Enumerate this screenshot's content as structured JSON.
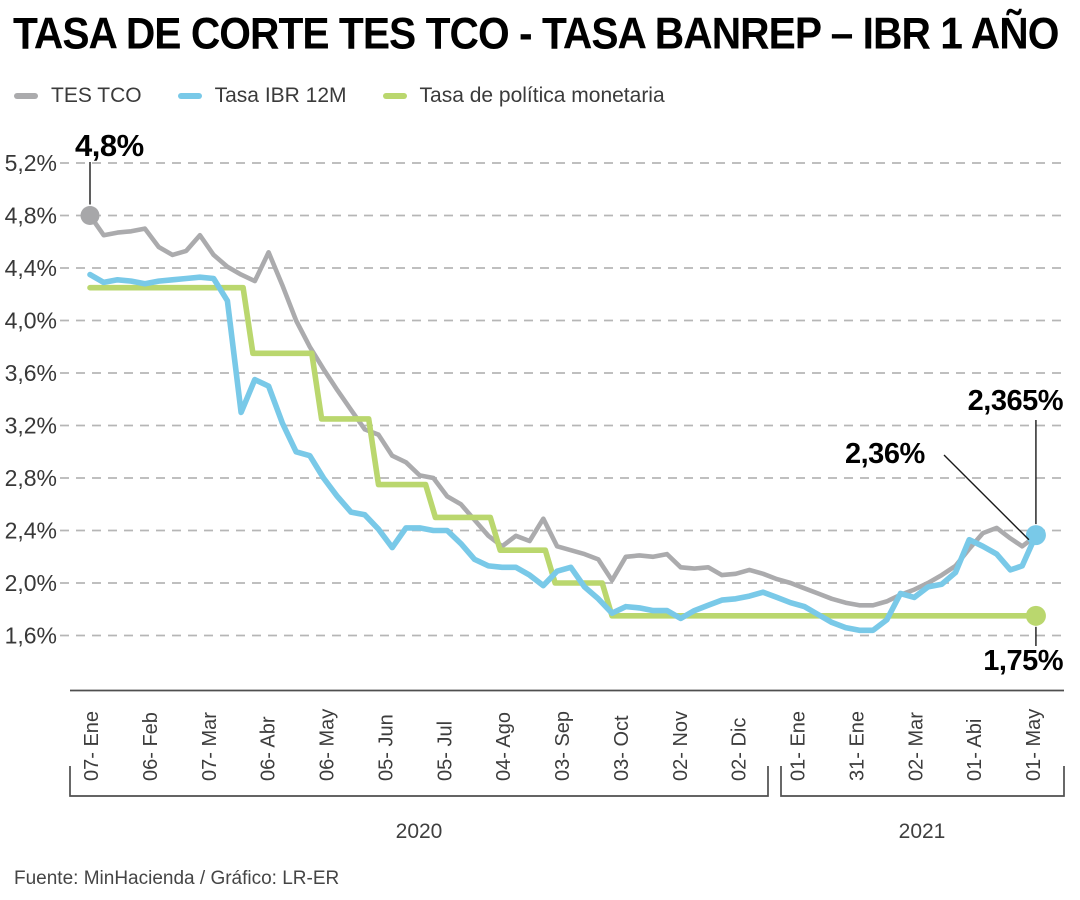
{
  "header": {
    "title": "TASA DE CORTE TES TCO - TASA BANREP – IBR 1 AÑO"
  },
  "legend": [
    {
      "label": "TES TCO",
      "color": "#ababad"
    },
    {
      "label": "Tasa IBR 12M",
      "color": "#79c9e8"
    },
    {
      "label": "Tasa de política monetaria",
      "color": "#bad76e"
    }
  ],
  "footer": {
    "source": "Fuente: MinHacienda / Gráfico: LR-ER"
  },
  "chart_data": {
    "type": "line",
    "title": "TASA DE CORTE TES TCO - TASA BANREP – IBR 1 AÑO",
    "ylabel": "",
    "xlabel": "",
    "ylim": [
      1.6,
      5.2
    ],
    "grid": "dashed-horizontal",
    "legend_position": "top-left",
    "y_ticks": [
      {
        "label": "5,2%",
        "value": 5.2
      },
      {
        "label": "4,8%",
        "value": 4.8
      },
      {
        "label": "4,4%",
        "value": 4.4
      },
      {
        "label": "4,0%",
        "value": 4.0
      },
      {
        "label": "3,6%",
        "value": 3.6
      },
      {
        "label": "3,2%",
        "value": 3.2
      },
      {
        "label": "2,8%",
        "value": 2.8
      },
      {
        "label": "2,4%",
        "value": 2.4
      },
      {
        "label": "2,0%",
        "value": 2.0
      },
      {
        "label": "1,6%",
        "value": 1.6
      }
    ],
    "x_ticks": [
      {
        "label": "07- Ene",
        "date": "2020-01-07"
      },
      {
        "label": "06- Feb",
        "date": "2020-02-06"
      },
      {
        "label": "07- Mar",
        "date": "2020-03-07"
      },
      {
        "label": "06- Abr",
        "date": "2020-04-06"
      },
      {
        "label": "06- May",
        "date": "2020-05-06"
      },
      {
        "label": "05- Jun",
        "date": "2020-06-05"
      },
      {
        "label": "05- Jul",
        "date": "2020-07-05"
      },
      {
        "label": "04- Ago",
        "date": "2020-08-04"
      },
      {
        "label": "03- Sep",
        "date": "2020-09-03"
      },
      {
        "label": "03- Oct",
        "date": "2020-10-03"
      },
      {
        "label": "02- Nov",
        "date": "2020-11-02"
      },
      {
        "label": "02- Dic",
        "date": "2020-12-02"
      },
      {
        "label": "01- Ene",
        "date": "2021-01-01"
      },
      {
        "label": "31- Ene",
        "date": "2021-01-31"
      },
      {
        "label": "02- Mar",
        "date": "2021-03-02"
      },
      {
        "label": "01- Abi",
        "date": "2021-04-01"
      },
      {
        "label": "01- May",
        "date": "2021-05-01"
      }
    ],
    "year_groups": [
      {
        "label": "2020"
      },
      {
        "label": "2021"
      }
    ],
    "series": [
      {
        "name": "TES TCO",
        "color": "#ababad",
        "marker": "first",
        "points": [
          [
            "2020-01-07",
            4.8
          ],
          [
            "2020-01-14",
            4.65
          ],
          [
            "2020-01-21",
            4.67
          ],
          [
            "2020-01-28",
            4.68
          ],
          [
            "2020-02-04",
            4.7
          ],
          [
            "2020-02-11",
            4.56
          ],
          [
            "2020-02-18",
            4.5
          ],
          [
            "2020-02-25",
            4.53
          ],
          [
            "2020-03-03",
            4.65
          ],
          [
            "2020-03-10",
            4.5
          ],
          [
            "2020-03-17",
            4.41
          ],
          [
            "2020-03-24",
            4.35
          ],
          [
            "2020-03-31",
            4.3
          ],
          [
            "2020-04-07",
            4.52
          ],
          [
            "2020-04-14",
            4.27
          ],
          [
            "2020-04-21",
            4.0
          ],
          [
            "2020-04-28",
            3.8
          ],
          [
            "2020-05-05",
            3.63
          ],
          [
            "2020-05-12",
            3.47
          ],
          [
            "2020-05-19",
            3.32
          ],
          [
            "2020-05-26",
            3.17
          ],
          [
            "2020-06-02",
            3.13
          ],
          [
            "2020-06-09",
            2.97
          ],
          [
            "2020-06-16",
            2.92
          ],
          [
            "2020-06-23",
            2.82
          ],
          [
            "2020-06-30",
            2.8
          ],
          [
            "2020-07-07",
            2.66
          ],
          [
            "2020-07-14",
            2.6
          ],
          [
            "2020-07-21",
            2.48
          ],
          [
            "2020-07-28",
            2.36
          ],
          [
            "2020-08-04",
            2.28
          ],
          [
            "2020-08-11",
            2.36
          ],
          [
            "2020-08-18",
            2.32
          ],
          [
            "2020-08-25",
            2.49
          ],
          [
            "2020-09-01",
            2.28
          ],
          [
            "2020-09-08",
            2.25
          ],
          [
            "2020-09-15",
            2.22
          ],
          [
            "2020-09-22",
            2.18
          ],
          [
            "2020-09-29",
            2.02
          ],
          [
            "2020-10-06",
            2.2
          ],
          [
            "2020-10-13",
            2.21
          ],
          [
            "2020-10-20",
            2.2
          ],
          [
            "2020-10-27",
            2.22
          ],
          [
            "2020-11-03",
            2.12
          ],
          [
            "2020-11-10",
            2.11
          ],
          [
            "2020-11-17",
            2.12
          ],
          [
            "2020-11-24",
            2.06
          ],
          [
            "2020-12-01",
            2.07
          ],
          [
            "2020-12-08",
            2.1
          ],
          [
            "2020-12-15",
            2.07
          ],
          [
            "2020-12-22",
            2.03
          ],
          [
            "2020-12-29",
            2.0
          ],
          [
            "2021-01-05",
            1.96
          ],
          [
            "2021-01-12",
            1.92
          ],
          [
            "2021-01-19",
            1.88
          ],
          [
            "2021-01-26",
            1.85
          ],
          [
            "2021-02-02",
            1.83
          ],
          [
            "2021-02-09",
            1.83
          ],
          [
            "2021-02-16",
            1.86
          ],
          [
            "2021-02-23",
            1.91
          ],
          [
            "2021-03-02",
            1.95
          ],
          [
            "2021-03-09",
            2.0
          ],
          [
            "2021-03-16",
            2.06
          ],
          [
            "2021-03-23",
            2.13
          ],
          [
            "2021-03-30",
            2.26
          ],
          [
            "2021-04-06",
            2.38
          ],
          [
            "2021-04-13",
            2.42
          ],
          [
            "2021-04-20",
            2.34
          ],
          [
            "2021-04-26",
            2.28
          ],
          [
            "2021-05-03",
            2.36
          ]
        ]
      },
      {
        "name": "Tasa de política monetaria",
        "color": "#bad76e",
        "marker": "last",
        "points": [
          [
            "2020-01-07",
            4.25
          ],
          [
            "2020-03-25",
            4.25
          ],
          [
            "2020-03-30",
            3.75
          ],
          [
            "2020-04-29",
            3.75
          ],
          [
            "2020-05-04",
            3.25
          ],
          [
            "2020-05-28",
            3.25
          ],
          [
            "2020-06-02",
            2.75
          ],
          [
            "2020-06-26",
            2.75
          ],
          [
            "2020-07-01",
            2.5
          ],
          [
            "2020-07-29",
            2.5
          ],
          [
            "2020-08-03",
            2.25
          ],
          [
            "2020-08-26",
            2.25
          ],
          [
            "2020-08-31",
            2.0
          ],
          [
            "2020-09-24",
            2.0
          ],
          [
            "2020-09-29",
            1.75
          ],
          [
            "2021-05-03",
            1.75
          ]
        ]
      },
      {
        "name": "Tasa IBR 12M",
        "color": "#79c9e8",
        "marker": "last",
        "points": [
          [
            "2020-01-07",
            4.35
          ],
          [
            "2020-01-14",
            4.29
          ],
          [
            "2020-01-21",
            4.31
          ],
          [
            "2020-01-28",
            4.3
          ],
          [
            "2020-02-04",
            4.28
          ],
          [
            "2020-02-11",
            4.3
          ],
          [
            "2020-02-18",
            4.31
          ],
          [
            "2020-02-25",
            4.32
          ],
          [
            "2020-03-03",
            4.33
          ],
          [
            "2020-03-10",
            4.32
          ],
          [
            "2020-03-17",
            4.15
          ],
          [
            "2020-03-24",
            3.3
          ],
          [
            "2020-03-31",
            3.55
          ],
          [
            "2020-04-07",
            3.5
          ],
          [
            "2020-04-14",
            3.22
          ],
          [
            "2020-04-21",
            3.0
          ],
          [
            "2020-04-28",
            2.97
          ],
          [
            "2020-05-05",
            2.8
          ],
          [
            "2020-05-12",
            2.66
          ],
          [
            "2020-05-19",
            2.54
          ],
          [
            "2020-05-26",
            2.52
          ],
          [
            "2020-06-02",
            2.41
          ],
          [
            "2020-06-09",
            2.27
          ],
          [
            "2020-06-16",
            2.42
          ],
          [
            "2020-06-23",
            2.42
          ],
          [
            "2020-06-30",
            2.4
          ],
          [
            "2020-07-07",
            2.4
          ],
          [
            "2020-07-14",
            2.3
          ],
          [
            "2020-07-21",
            2.18
          ],
          [
            "2020-07-28",
            2.13
          ],
          [
            "2020-08-04",
            2.12
          ],
          [
            "2020-08-11",
            2.12
          ],
          [
            "2020-08-18",
            2.06
          ],
          [
            "2020-08-25",
            1.98
          ],
          [
            "2020-09-01",
            2.09
          ],
          [
            "2020-09-08",
            2.12
          ],
          [
            "2020-09-15",
            1.97
          ],
          [
            "2020-09-22",
            1.88
          ],
          [
            "2020-09-29",
            1.77
          ],
          [
            "2020-10-06",
            1.82
          ],
          [
            "2020-10-13",
            1.81
          ],
          [
            "2020-10-20",
            1.79
          ],
          [
            "2020-10-27",
            1.79
          ],
          [
            "2020-11-03",
            1.73
          ],
          [
            "2020-11-10",
            1.79
          ],
          [
            "2020-11-17",
            1.83
          ],
          [
            "2020-11-24",
            1.87
          ],
          [
            "2020-12-01",
            1.88
          ],
          [
            "2020-12-08",
            1.9
          ],
          [
            "2020-12-15",
            1.93
          ],
          [
            "2020-12-22",
            1.89
          ],
          [
            "2020-12-29",
            1.85
          ],
          [
            "2021-01-05",
            1.82
          ],
          [
            "2021-01-12",
            1.76
          ],
          [
            "2021-01-19",
            1.7
          ],
          [
            "2021-01-26",
            1.66
          ],
          [
            "2021-02-02",
            1.64
          ],
          [
            "2021-02-09",
            1.64
          ],
          [
            "2021-02-16",
            1.72
          ],
          [
            "2021-02-23",
            1.92
          ],
          [
            "2021-03-02",
            1.89
          ],
          [
            "2021-03-09",
            1.97
          ],
          [
            "2021-03-16",
            1.99
          ],
          [
            "2021-03-23",
            2.08
          ],
          [
            "2021-03-30",
            2.33
          ],
          [
            "2021-04-06",
            2.28
          ],
          [
            "2021-04-13",
            2.22
          ],
          [
            "2021-04-20",
            2.1
          ],
          [
            "2021-04-26",
            2.13
          ],
          [
            "2021-05-03",
            2.365
          ]
        ]
      }
    ],
    "annotations": [
      {
        "label": "4,8%",
        "series": "TES TCO",
        "date": "2020-01-07",
        "value": 4.8
      },
      {
        "label": "2,365%",
        "series": "Tasa IBR 12M",
        "date": "2021-05-03",
        "value": 2.365
      },
      {
        "label": "2,36%",
        "series": "TES TCO",
        "date": "2021-05-03",
        "value": 2.36
      },
      {
        "label": "1,75%",
        "series": "Tasa de política monetaria",
        "date": "2021-05-03",
        "value": 1.75
      }
    ]
  }
}
